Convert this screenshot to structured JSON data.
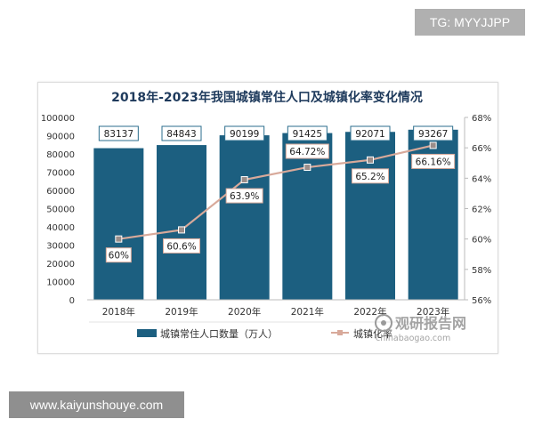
{
  "badge": {
    "text": "TG: MYYJJPP"
  },
  "footer": {
    "url": "www.kaiyunshouye.com"
  },
  "watermark": {
    "brand": "观研报告网",
    "domain": "chinabaogao.com"
  },
  "colors": {
    "bar": "#1c5f80",
    "line": "#d8a99a",
    "title": "#1e3a5c",
    "label_border": "#2b6e8c"
  },
  "chart_data": {
    "type": "bar",
    "title": "2018年-2023年我国城镇常住人口及城镇化率变化情况",
    "categories": [
      "2018年",
      "2019年",
      "2020年",
      "2021年",
      "2022年",
      "2023年"
    ],
    "series": [
      {
        "name": "城镇常住人口数量（万人）",
        "type": "bar",
        "axis": "left",
        "values": [
          83137,
          84843,
          90199,
          91425,
          92071,
          93267
        ],
        "labels": [
          "83137",
          "84843",
          "90199",
          "91425",
          "92071",
          "93267"
        ]
      },
      {
        "name": "城镇化率",
        "type": "line",
        "axis": "right",
        "values": [
          60,
          60.6,
          63.9,
          64.72,
          65.2,
          66.16
        ],
        "labels": [
          "60%",
          "60.6%",
          "63.9%",
          "64.72%",
          "65.2%",
          "66.16%"
        ]
      }
    ],
    "y_left": {
      "range": [
        0,
        100000
      ],
      "ticks": [
        "0",
        "10000",
        "20000",
        "30000",
        "40000",
        "50000",
        "60000",
        "70000",
        "80000",
        "90000",
        "100000"
      ]
    },
    "y_right": {
      "range": [
        56,
        68
      ],
      "ticks": [
        "56%",
        "58%",
        "60%",
        "62%",
        "64%",
        "66%",
        "68%"
      ]
    },
    "grid": false,
    "legend": "bottom"
  }
}
